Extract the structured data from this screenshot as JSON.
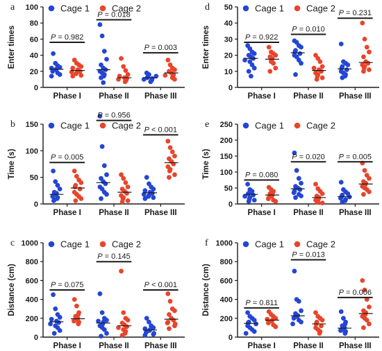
{
  "chart_data": [
    {
      "panel": "a",
      "type": "scatter",
      "ylabel": "Enter times",
      "ylim": [
        0,
        100
      ],
      "yticks": [
        0,
        20,
        40,
        60,
        80,
        100
      ],
      "categories": [
        "Phase I",
        "Phase II",
        "Phase III"
      ],
      "legend": [
        "Cage 1",
        "Cage 2"
      ],
      "series": [
        {
          "name": "Cage 1",
          "color": "#2446d6",
          "groups": [
            [
              42,
              30,
              27,
              25,
              24,
              23,
              22,
              21,
              20,
              18,
              16,
              14
            ],
            [
              78,
              64,
              45,
              35,
              28,
              24,
              22,
              20,
              18,
              16,
              14,
              12,
              6
            ],
            [
              18,
              16,
              15,
              14,
              13,
              12,
              11,
              10,
              9,
              8,
              7
            ]
          ]
        },
        {
          "name": "Cage 2",
          "color": "#e8452b",
          "groups": [
            [
              34,
              30,
              28,
              26,
              24,
              22,
              20,
              19,
              18,
              17,
              15,
              14
            ],
            [
              36,
              26,
              21,
              16,
              14,
              12,
              11,
              10,
              9,
              8,
              7
            ],
            [
              34,
              28,
              24,
              22,
              20,
              18,
              16,
              15,
              14,
              12,
              10
            ]
          ]
        }
      ],
      "annotations": [
        {
          "category": "Phase I",
          "text": " = 0.982",
          "y": 56
        },
        {
          "category": "Phase II",
          "text": " = 0.018",
          "y": 84
        },
        {
          "category": "Phase III",
          "text": " = 0.003",
          "y": 43
        }
      ]
    },
    {
      "panel": "b",
      "type": "scatter",
      "ylabel": "Time (s)",
      "ylim": [
        0,
        150
      ],
      "yticks": [
        0,
        50,
        100,
        150
      ],
      "categories": [
        "Phase I",
        "Phase II",
        "Phase III"
      ],
      "legend": [
        "Cage 1",
        "Cage 2"
      ],
      "series": [
        {
          "name": "Cage 1",
          "color": "#2446d6",
          "groups": [
            [
              62,
              42,
              35,
              28,
              22,
              20,
              18,
              16,
              14,
              12,
              10,
              8,
              6
            ],
            [
              165,
              108,
              72,
              55,
              48,
              42,
              38,
              32,
              28,
              22,
              18,
              10
            ],
            [
              50,
              38,
              32,
              28,
              25,
              22,
              20,
              18,
              16,
              14,
              12,
              10
            ]
          ]
        },
        {
          "name": "Cage 2",
          "color": "#e8452b",
          "groups": [
            [
              62,
              52,
              45,
              40,
              35,
              32,
              28,
              22,
              18,
              14,
              10,
              6
            ],
            [
              55,
              48,
              40,
              32,
              28,
              24,
              20,
              16,
              12,
              10,
              6,
              4
            ],
            [
              118,
              106,
              98,
              90,
              85,
              80,
              75,
              70,
              65,
              62,
              55,
              50
            ]
          ]
        }
      ],
      "annotations": [
        {
          "category": "Phase I",
          "text": " = 0.005",
          "y": 78
        },
        {
          "category": "Phase II",
          "text": " = 0.956",
          "y": 157
        },
        {
          "category": "Phase III",
          "text": " < 0.001",
          "y": 130
        }
      ]
    },
    {
      "panel": "c",
      "type": "scatter",
      "ylabel": "Distance (cm)",
      "ylim": [
        0,
        1000
      ],
      "yticks": [
        0,
        200,
        400,
        600,
        800,
        1000
      ],
      "categories": [
        "Phase I",
        "Phase II",
        "Phase III"
      ],
      "legend": [
        "Cage 1",
        "Cage 2"
      ],
      "series": [
        {
          "name": "Cage 1",
          "color": "#2446d6",
          "groups": [
            [
              450,
              300,
              240,
              210,
              190,
              170,
              155,
              140,
              120,
              100,
              70,
              40
            ],
            [
              460,
              260,
              200,
              180,
              170,
              160,
              140,
              120,
              100,
              80,
              40,
              10
            ],
            [
              200,
              160,
              120,
              100,
              90,
              80,
              70,
              60,
              50,
              40,
              30,
              20
            ]
          ]
        },
        {
          "name": "Cage 2",
          "color": "#e8452b",
          "groups": [
            [
              400,
              330,
              260,
              240,
              220,
              200,
              190,
              180,
              170,
              160,
              150,
              140
            ],
            [
              700,
              260,
              200,
              180,
              150,
              130,
              110,
              100,
              80,
              60,
              40,
              20
            ],
            [
              460,
              380,
              300,
              280,
              240,
              200,
              180,
              160,
              150,
              140,
              120,
              90
            ]
          ]
        }
      ],
      "annotations": [
        {
          "category": "Phase I",
          "text": " = 0.075",
          "y": 500
        },
        {
          "category": "Phase II",
          "text": " = 0.145",
          "y": 800
        },
        {
          "category": "Phase III",
          "text": " < 0.001",
          "y": 500
        }
      ]
    },
    {
      "panel": "d",
      "type": "scatter",
      "ylabel": "Enter times",
      "ylim": [
        0,
        50
      ],
      "yticks": [
        0,
        10,
        20,
        30,
        40,
        50
      ],
      "categories": [
        "Phase I",
        "Phase II",
        "Phase III"
      ],
      "legend": [
        "Cage 1",
        "Cage 2"
      ],
      "series": [
        {
          "name": "Cage 1",
          "color": "#2446d6",
          "groups": [
            [
              26,
              24,
              22,
              21,
              20,
              19,
              18,
              17,
              16,
              14,
              12,
              10,
              7
            ],
            [
              29,
              28,
              26,
              25,
              23,
              22,
              21,
              20,
              19,
              17,
              15,
              8
            ],
            [
              27,
              16,
              15,
              14,
              13,
              12,
              11,
              10,
              9,
              8,
              7,
              6
            ]
          ]
        },
        {
          "name": "Cage 2",
          "color": "#e8452b",
          "groups": [
            [
              25,
              22,
              21,
              20,
              19,
              18,
              17,
              17,
              16,
              15,
              12,
              10
            ],
            [
              20,
              18,
              16,
              13,
              12,
              11,
              10,
              9,
              8,
              7,
              6,
              5
            ],
            [
              40,
              30,
              25,
              22,
              19,
              16,
              15,
              14,
              13,
              12,
              11,
              10
            ]
          ]
        }
      ],
      "annotations": [
        {
          "category": "Phase I",
          "text": " = 0.922",
          "y": 28
        },
        {
          "category": "Phase II",
          "text": " = 0.010",
          "y": 33
        },
        {
          "category": "Phase III",
          "text": " = 0.231",
          "y": 43
        }
      ]
    },
    {
      "panel": "e",
      "type": "scatter",
      "ylabel": "Time (s)",
      "ylim": [
        0,
        250
      ],
      "yticks": [
        0,
        50,
        100,
        150,
        200,
        250
      ],
      "categories": [
        "Phase I",
        "Phase II",
        "Phase III"
      ],
      "legend": [
        "Cage 1",
        "Cage 2"
      ],
      "series": [
        {
          "name": "Cage 1",
          "color": "#2446d6",
          "groups": [
            [
              62,
              45,
              40,
              36,
              34,
              32,
              28,
              24,
              20,
              16,
              12,
              8
            ],
            [
              160,
              105,
              80,
              65,
              55,
              50,
              45,
              40,
              35,
              30,
              25,
              20
            ],
            [
              68,
              45,
              38,
              32,
              28,
              24,
              22,
              20,
              18,
              14,
              10,
              6
            ]
          ]
        },
        {
          "name": "Cage 2",
          "color": "#e8452b",
          "groups": [
            [
              52,
              45,
              40,
              36,
              32,
              28,
              24,
              20,
              16,
              12,
              8
            ],
            [
              62,
              48,
              40,
              32,
              25,
              20,
              16,
              12,
              8,
              5,
              3
            ],
            [
              128,
              105,
              90,
              80,
              70,
              65,
              60,
              55,
              50,
              45,
              38,
              30
            ]
          ]
        }
      ],
      "annotations": [
        {
          "category": "Phase I",
          "text": " = 0.080",
          "y": 75
        },
        {
          "category": "Phase II",
          "text": " = 0.020",
          "y": 132
        },
        {
          "category": "Phase III",
          "text": " = 0.005",
          "y": 132
        }
      ]
    },
    {
      "panel": "f",
      "type": "scatter",
      "ylabel": "Distance (cm)",
      "ylim": [
        0,
        1000
      ],
      "yticks": [
        0,
        200,
        400,
        600,
        800,
        1000
      ],
      "categories": [
        "Phase I",
        "Phase II",
        "Phase III"
      ],
      "legend": [
        "Cage 1",
        "Cage 2"
      ],
      "series": [
        {
          "name": "Cage 1",
          "color": "#2446d6",
          "groups": [
            [
              260,
              220,
              200,
              180,
              160,
              150,
              140,
              120,
              100,
              80,
              60,
              40
            ],
            [
              700,
              400,
              380,
              280,
              250,
              230,
              220,
              210,
              200,
              180,
              160,
              140
            ],
            [
              270,
              200,
              160,
              140,
              120,
              100,
              90,
              80,
              70,
              60,
              50,
              40
            ]
          ]
        },
        {
          "name": "Cage 2",
          "color": "#e8452b",
          "groups": [
            [
              270,
              240,
              220,
              200,
              190,
              180,
              170,
              160,
              150,
              130,
              110
            ],
            [
              260,
              220,
              200,
              180,
              160,
              140,
              120,
              100,
              80,
              60,
              40
            ],
            [
              600,
              500,
              400,
              320,
              280,
              260,
              240,
              220,
              200,
              180,
              140,
              100
            ]
          ]
        }
      ],
      "annotations": [
        {
          "category": "Phase I",
          "text": " = 0.811",
          "y": 310
        },
        {
          "category": "Phase II",
          "text": " = 0.013",
          "y": 820
        },
        {
          "category": "Phase III",
          "text": " = 0.006",
          "y": 420
        }
      ]
    }
  ]
}
